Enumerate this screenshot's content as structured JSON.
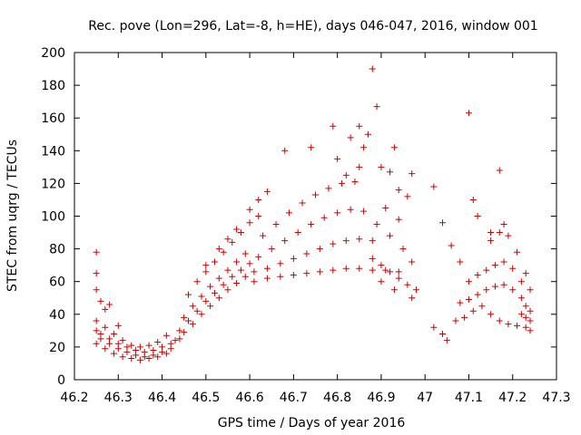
{
  "chart_data": {
    "type": "scatter",
    "title": "Rec. pove (Lon=296, Lat=-8, h=HE), days 046-047, 2016, window 001",
    "xlabel": "GPS time / Days of year 2016",
    "ylabel": "STEC from uqrg / TECUs",
    "xlim": [
      46.2,
      47.3
    ],
    "ylim": [
      0,
      200
    ],
    "x_ticks": [
      "46.2",
      "46.3",
      "46.4",
      "46.5",
      "46.6",
      "46.7",
      "46.8",
      "46.9",
      "47",
      "47.1",
      "47.2",
      "47.3"
    ],
    "y_ticks": [
      "0",
      "20",
      "40",
      "60",
      "80",
      "100",
      "120",
      "140",
      "160",
      "180",
      "200"
    ],
    "grid": false,
    "marker": "+",
    "color": "#cc0000",
    "series": [
      {
        "points": [
          [
            46.25,
            78
          ],
          [
            46.25,
            65
          ],
          [
            46.25,
            55
          ],
          [
            46.26,
            48
          ],
          [
            46.27,
            43
          ],
          [
            46.28,
            46
          ],
          [
            46.3,
            33
          ],
          [
            46.25,
            30
          ],
          [
            46.26,
            28
          ],
          [
            46.28,
            25
          ],
          [
            46.3,
            22
          ],
          [
            46.32,
            20
          ],
          [
            46.34,
            18
          ],
          [
            46.36,
            17
          ],
          [
            46.38,
            18
          ],
          [
            46.4,
            20
          ],
          [
            46.42,
            22
          ],
          [
            46.44,
            25
          ],
          [
            46.25,
            36
          ],
          [
            46.27,
            32
          ],
          [
            46.29,
            28
          ],
          [
            46.31,
            24
          ],
          [
            46.33,
            21
          ],
          [
            46.35,
            20
          ],
          [
            46.37,
            21
          ],
          [
            46.39,
            23
          ],
          [
            46.41,
            27
          ],
          [
            46.25,
            22
          ],
          [
            46.27,
            19
          ],
          [
            46.29,
            16
          ],
          [
            46.31,
            14
          ],
          [
            46.33,
            13
          ],
          [
            46.35,
            12
          ],
          [
            46.37,
            13
          ],
          [
            46.39,
            14
          ],
          [
            46.41,
            16
          ],
          [
            46.26,
            25
          ],
          [
            46.28,
            22
          ],
          [
            46.3,
            19
          ],
          [
            46.32,
            17
          ],
          [
            46.34,
            15
          ],
          [
            46.36,
            14
          ],
          [
            46.38,
            15
          ],
          [
            46.4,
            17
          ],
          [
            46.42,
            19
          ],
          [
            46.43,
            24
          ],
          [
            46.45,
            29
          ],
          [
            46.47,
            34
          ],
          [
            46.49,
            40
          ],
          [
            46.51,
            45
          ],
          [
            46.53,
            50
          ],
          [
            46.55,
            55
          ],
          [
            46.57,
            59
          ],
          [
            46.59,
            63
          ],
          [
            46.44,
            30
          ],
          [
            46.46,
            36
          ],
          [
            46.48,
            42
          ],
          [
            46.5,
            48
          ],
          [
            46.52,
            53
          ],
          [
            46.54,
            58
          ],
          [
            46.56,
            63
          ],
          [
            46.58,
            67
          ],
          [
            46.6,
            71
          ],
          [
            46.45,
            38
          ],
          [
            46.47,
            45
          ],
          [
            46.49,
            51
          ],
          [
            46.51,
            57
          ],
          [
            46.53,
            62
          ],
          [
            46.55,
            67
          ],
          [
            46.57,
            72
          ],
          [
            46.59,
            77
          ],
          [
            46.46,
            52
          ],
          [
            46.48,
            60
          ],
          [
            46.5,
            66
          ],
          [
            46.52,
            72
          ],
          [
            46.54,
            78
          ],
          [
            46.56,
            84
          ],
          [
            46.58,
            90
          ],
          [
            46.6,
            96
          ],
          [
            46.62,
            100
          ],
          [
            46.5,
            70
          ],
          [
            46.53,
            80
          ],
          [
            46.55,
            86
          ],
          [
            46.57,
            92
          ],
          [
            46.6,
            104
          ],
          [
            46.62,
            110
          ],
          [
            46.64,
            115
          ],
          [
            46.61,
            60
          ],
          [
            46.64,
            62
          ],
          [
            46.67,
            63
          ],
          [
            46.7,
            64
          ],
          [
            46.73,
            65
          ],
          [
            46.76,
            66
          ],
          [
            46.79,
            67
          ],
          [
            46.82,
            68
          ],
          [
            46.85,
            68
          ],
          [
            46.88,
            67
          ],
          [
            46.91,
            67
          ],
          [
            46.94,
            66
          ],
          [
            46.61,
            66
          ],
          [
            46.64,
            68
          ],
          [
            46.67,
            71
          ],
          [
            46.7,
            74
          ],
          [
            46.73,
            77
          ],
          [
            46.76,
            80
          ],
          [
            46.79,
            83
          ],
          [
            46.82,
            85
          ],
          [
            46.85,
            86
          ],
          [
            46.88,
            85
          ],
          [
            46.62,
            75
          ],
          [
            46.65,
            80
          ],
          [
            46.68,
            85
          ],
          [
            46.71,
            90
          ],
          [
            46.74,
            95
          ],
          [
            46.77,
            99
          ],
          [
            46.8,
            102
          ],
          [
            46.83,
            104
          ],
          [
            46.86,
            103
          ],
          [
            46.63,
            88
          ],
          [
            46.66,
            95
          ],
          [
            46.69,
            102
          ],
          [
            46.72,
            108
          ],
          [
            46.75,
            113
          ],
          [
            46.78,
            117
          ],
          [
            46.81,
            120
          ],
          [
            46.84,
            121
          ],
          [
            46.68,
            140
          ],
          [
            46.74,
            142
          ],
          [
            46.79,
            155
          ],
          [
            46.83,
            148
          ],
          [
            46.85,
            155
          ],
          [
            46.87,
            150
          ],
          [
            46.88,
            190
          ],
          [
            46.89,
            167
          ],
          [
            46.93,
            142
          ],
          [
            46.8,
            135
          ],
          [
            46.82,
            125
          ],
          [
            46.85,
            130
          ],
          [
            46.86,
            142
          ],
          [
            46.9,
            130
          ],
          [
            46.92,
            127
          ],
          [
            46.94,
            116
          ],
          [
            46.96,
            112
          ],
          [
            46.88,
            74
          ],
          [
            46.9,
            70
          ],
          [
            46.92,
            66
          ],
          [
            46.94,
            62
          ],
          [
            46.96,
            58
          ],
          [
            46.98,
            55
          ],
          [
            46.9,
            60
          ],
          [
            46.93,
            55
          ],
          [
            46.97,
            50
          ],
          [
            46.89,
            95
          ],
          [
            46.92,
            88
          ],
          [
            46.95,
            80
          ],
          [
            46.97,
            72
          ],
          [
            46.91,
            105
          ],
          [
            46.94,
            98
          ],
          [
            46.97,
            126
          ],
          [
            47.02,
            118
          ],
          [
            47.04,
            96
          ],
          [
            47.06,
            82
          ],
          [
            47.08,
            72
          ],
          [
            47.1,
            163
          ],
          [
            47.11,
            110
          ],
          [
            47.12,
            100
          ],
          [
            47.15,
            90
          ],
          [
            47.17,
            128
          ],
          [
            47.02,
            32
          ],
          [
            47.04,
            28
          ],
          [
            47.05,
            24
          ],
          [
            47.07,
            36
          ],
          [
            47.09,
            38
          ],
          [
            47.11,
            42
          ],
          [
            47.13,
            45
          ],
          [
            47.15,
            40
          ],
          [
            47.17,
            36
          ],
          [
            47.19,
            34
          ],
          [
            47.21,
            33
          ],
          [
            47.23,
            32
          ],
          [
            47.08,
            47
          ],
          [
            47.1,
            49
          ],
          [
            47.12,
            52
          ],
          [
            47.14,
            55
          ],
          [
            47.16,
            57
          ],
          [
            47.18,
            58
          ],
          [
            47.2,
            55
          ],
          [
            47.22,
            50
          ],
          [
            47.1,
            60
          ],
          [
            47.12,
            64
          ],
          [
            47.14,
            67
          ],
          [
            47.16,
            70
          ],
          [
            47.18,
            72
          ],
          [
            47.2,
            68
          ],
          [
            47.22,
            60
          ],
          [
            47.24,
            55
          ],
          [
            47.15,
            85
          ],
          [
            47.17,
            90
          ],
          [
            47.18,
            95
          ],
          [
            47.19,
            88
          ],
          [
            47.21,
            78
          ],
          [
            47.23,
            65
          ],
          [
            47.22,
            40
          ],
          [
            47.23,
            38
          ],
          [
            47.24,
            36
          ],
          [
            47.24,
            30
          ],
          [
            47.24,
            42
          ],
          [
            47.23,
            45
          ]
        ]
      }
    ]
  }
}
